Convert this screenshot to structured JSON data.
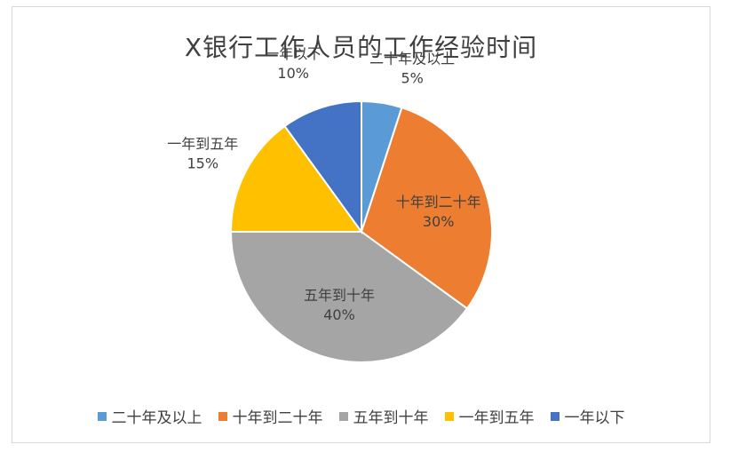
{
  "chart_data": {
    "type": "pie",
    "title": "X银行工作人员的工作经验时间",
    "categories": [
      "二十年及以上",
      "十年到二十年",
      "五年到十年",
      "一年到五年",
      "一年以下"
    ],
    "values": [
      5,
      30,
      40,
      15,
      10
    ],
    "value_labels": [
      "5%",
      "30%",
      "40%",
      "15%",
      "10%"
    ],
    "colors": [
      "#5b9bd5",
      "#ed7d31",
      "#a5a5a5",
      "#ffc000",
      "#4472c4"
    ],
    "legend_position": "bottom",
    "start_angle": "12 o'clock, clockwise"
  }
}
